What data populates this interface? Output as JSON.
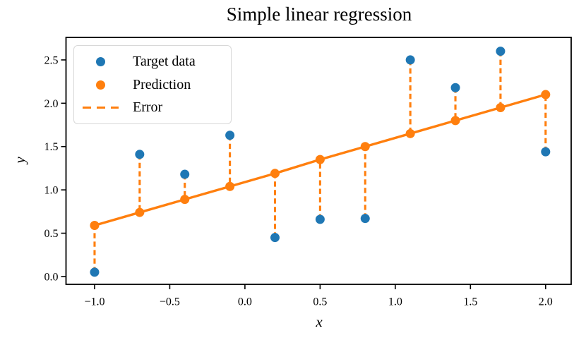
{
  "figure": {
    "title": "Simple linear regression",
    "xlabel": "x",
    "ylabel": "y"
  },
  "legend": {
    "position": "upper-left",
    "items": [
      {
        "label": "Target data",
        "marker": "dot",
        "color": "#1f77b4"
      },
      {
        "label": "Prediction",
        "marker": "dot",
        "color": "#ff7f0e"
      },
      {
        "label": "Error",
        "marker": "dashed-line",
        "color": "#ff7f0e"
      }
    ]
  },
  "colors": {
    "target_blue": "#1f77b4",
    "prediction_orange": "#ff7f0e",
    "error_orange": "#ff7f0e",
    "spine_black": "#000000",
    "legend_border_gray": "#d8d8d8"
  },
  "chart_data": {
    "type": "scatter",
    "title": "Simple linear regression",
    "xlabel": "x",
    "ylabel": "y",
    "x": [
      -1.0,
      -0.7,
      -0.4,
      -0.1,
      0.2,
      0.5,
      0.8,
      1.1,
      1.4,
      1.7,
      2.0
    ],
    "series": [
      {
        "name": "Target data",
        "kind": "scatter",
        "color": "#1f77b4",
        "values": [
          0.05,
          1.41,
          1.18,
          1.63,
          0.45,
          0.66,
          0.67,
          2.5,
          2.18,
          2.6,
          1.44
        ]
      },
      {
        "name": "Prediction",
        "kind": "line-with-markers",
        "color": "#ff7f0e",
        "values": [
          0.59,
          0.74,
          0.89,
          1.04,
          1.19,
          1.35,
          1.5,
          1.65,
          1.8,
          1.95,
          2.1
        ]
      },
      {
        "name": "Error",
        "kind": "vertical-dashed-segments",
        "color": "#ff7f0e",
        "style": "dashed",
        "connects": [
          "Target data",
          "Prediction"
        ]
      }
    ],
    "xticks": [
      -1.0,
      -0.5,
      0.0,
      0.5,
      1.0,
      1.5,
      2.0
    ],
    "yticks": [
      0.0,
      0.5,
      1.0,
      1.5,
      2.0,
      2.5
    ],
    "xlim": [
      -1.19,
      2.17
    ],
    "ylim": [
      -0.09,
      2.76
    ],
    "grid": false,
    "legend_position": "upper-left"
  }
}
